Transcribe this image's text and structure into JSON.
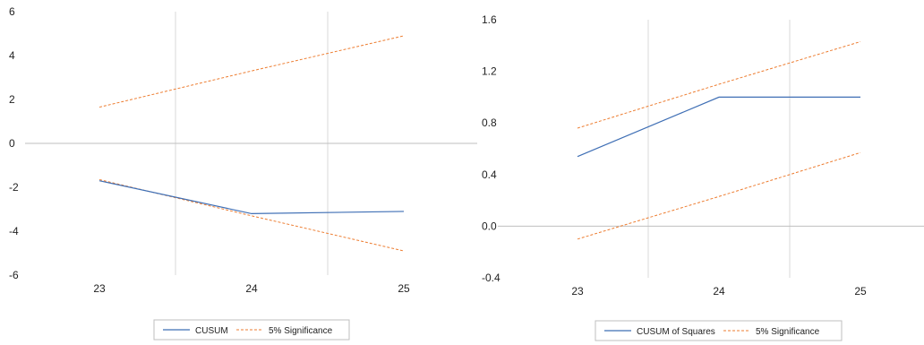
{
  "colors": {
    "cusum": "#3f6fb5",
    "significance": "#ed7d31",
    "grid": "#d9d9d9",
    "zero_line": "#bfbfbf",
    "legend_border": "#bfbfbf"
  },
  "chart_data": [
    {
      "type": "line",
      "title": "",
      "xlabel": "",
      "ylabel": "",
      "grid": "vertical",
      "legend_position": "bottom",
      "x": [
        23,
        24,
        25
      ],
      "x_tick_labels": [
        "23",
        "24",
        "25"
      ],
      "ylim": [
        -6,
        6
      ],
      "y_tick_labels": [
        "6",
        "4",
        "2",
        "0",
        "-2",
        "-4",
        "-6"
      ],
      "series": [
        {
          "name": "CUSUM",
          "values": [
            -1.7,
            -3.2,
            -3.1
          ],
          "style": "solid"
        },
        {
          "name": "5% Significance",
          "values": [
            1.65,
            3.3,
            4.9
          ],
          "style": "dashed"
        },
        {
          "name": "5% Significance",
          "values": [
            -1.65,
            -3.3,
            -4.9
          ],
          "style": "dashed"
        }
      ],
      "legend": [
        "CUSUM",
        "5% Significance"
      ]
    },
    {
      "type": "line",
      "title": "",
      "xlabel": "",
      "ylabel": "",
      "grid": "vertical",
      "legend_position": "bottom",
      "x": [
        23,
        24,
        25
      ],
      "x_tick_labels": [
        "23",
        "24",
        "25"
      ],
      "ylim": [
        -0.4,
        1.6
      ],
      "y_tick_labels": [
        "1.6",
        "1.2",
        "0.8",
        "0.4",
        "0.0",
        "-0.4"
      ],
      "series": [
        {
          "name": "CUSUM of Squares",
          "values": [
            0.54,
            1.0,
            1.0
          ],
          "style": "solid"
        },
        {
          "name": "5% Significance",
          "values": [
            0.76,
            1.1,
            1.43
          ],
          "style": "dashed"
        },
        {
          "name": "5% Significance",
          "values": [
            -0.1,
            0.23,
            0.57
          ],
          "style": "dashed"
        }
      ],
      "legend": [
        "CUSUM of Squares",
        "5% Significance"
      ]
    }
  ]
}
